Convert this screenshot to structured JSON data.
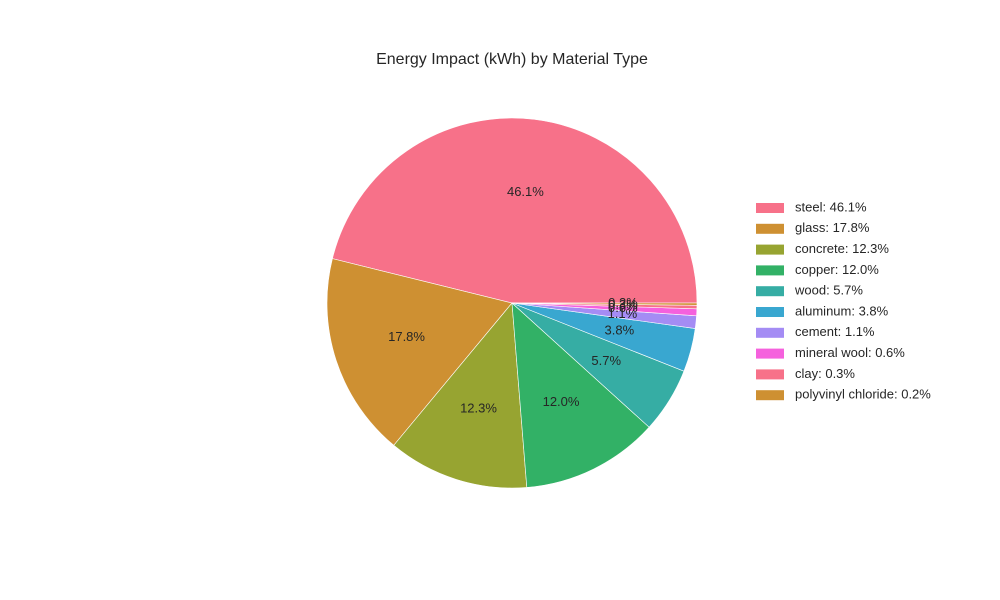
{
  "chart_data": {
    "type": "pie",
    "title": "Energy Impact (kWh) by Material Type",
    "start_angle_deg": 0,
    "direction": "counterclockwise",
    "legend_position": "right",
    "slices": [
      {
        "label": "steel",
        "percent": 46.1,
        "percent_label": "46.1%",
        "legend_label": "steel: 46.1%",
        "color": "#f77189"
      },
      {
        "label": "glass",
        "percent": 17.8,
        "percent_label": "17.8%",
        "legend_label": "glass: 17.8%",
        "color": "#ce9032"
      },
      {
        "label": "concrete",
        "percent": 12.3,
        "percent_label": "12.3%",
        "legend_label": "concrete: 12.3%",
        "color": "#97a431"
      },
      {
        "label": "copper",
        "percent": 12.0,
        "percent_label": "12.0%",
        "legend_label": "copper: 12.0%",
        "color": "#32b166"
      },
      {
        "label": "wood",
        "percent": 5.7,
        "percent_label": "5.7%",
        "legend_label": "wood: 5.7%",
        "color": "#36ada4"
      },
      {
        "label": "aluminum",
        "percent": 3.8,
        "percent_label": "3.8%",
        "legend_label": "aluminum: 3.8%",
        "color": "#39a7d0"
      },
      {
        "label": "cement",
        "percent": 1.1,
        "percent_label": "1.1%",
        "legend_label": "cement: 1.1%",
        "color": "#a48cf4"
      },
      {
        "label": "mineral wool",
        "percent": 0.6,
        "percent_label": "0.6%",
        "legend_label": "mineral wool: 0.6%",
        "color": "#f561dd"
      },
      {
        "label": "clay",
        "percent": 0.3,
        "percent_label": "0.3%",
        "legend_label": "clay: 0.3%",
        "color": "#f77189"
      },
      {
        "label": "polyvinyl chloride",
        "percent": 0.2,
        "percent_label": "0.2%",
        "legend_label": "polyvinyl chloride: 0.2%",
        "color": "#ce9032"
      }
    ]
  }
}
